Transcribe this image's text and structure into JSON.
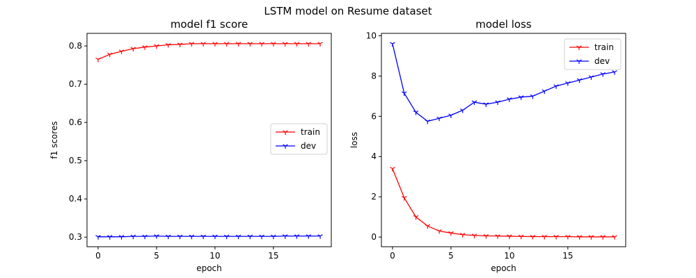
{
  "figure_title": "LSTM model on Resume dataset",
  "chart_data": [
    {
      "type": "line",
      "title": "model f1 score",
      "xlabel": "epoch",
      "ylabel": "f1 scores",
      "xlim": [
        -0.95,
        19.95
      ],
      "ylim": [
        0.275,
        0.833
      ],
      "xticks": [
        0,
        5,
        10,
        15
      ],
      "yticks": [
        0.3,
        0.4,
        0.5,
        0.6,
        0.7,
        0.8
      ],
      "ytick_labels": [
        "0.3",
        "0.4",
        "0.5",
        "0.6",
        "0.7",
        "0.8"
      ],
      "legend_position": "center-right",
      "x": [
        0,
        1,
        2,
        3,
        4,
        5,
        6,
        7,
        8,
        9,
        10,
        11,
        12,
        13,
        14,
        15,
        16,
        17,
        18,
        19
      ],
      "series": [
        {
          "name": "train",
          "color": "#ff0000",
          "values": [
            0.765,
            0.778,
            0.786,
            0.793,
            0.797,
            0.8,
            0.803,
            0.804,
            0.806,
            0.806,
            0.806,
            0.806,
            0.806,
            0.806,
            0.806,
            0.806,
            0.806,
            0.806,
            0.806,
            0.806
          ]
        },
        {
          "name": "dev",
          "color": "#0000ff",
          "values": [
            0.301,
            0.301,
            0.301,
            0.302,
            0.302,
            0.303,
            0.302,
            0.302,
            0.302,
            0.302,
            0.302,
            0.302,
            0.302,
            0.302,
            0.302,
            0.302,
            0.303,
            0.303,
            0.303,
            0.303
          ]
        }
      ]
    },
    {
      "type": "line",
      "title": "model loss",
      "xlabel": "epoch",
      "ylabel": "loss",
      "xlim": [
        -0.95,
        19.95
      ],
      "ylim": [
        -0.48,
        10.12
      ],
      "xticks": [
        0,
        5,
        10,
        15
      ],
      "yticks": [
        0,
        2,
        4,
        6,
        8,
        10
      ],
      "ytick_labels": [
        "0",
        "2",
        "4",
        "6",
        "8",
        "10"
      ],
      "legend_position": "top-right",
      "x": [
        0,
        1,
        2,
        3,
        4,
        5,
        6,
        7,
        8,
        9,
        10,
        11,
        12,
        13,
        14,
        15,
        16,
        17,
        18,
        19
      ],
      "series": [
        {
          "name": "train",
          "color": "#ff0000",
          "values": [
            3.4,
            1.95,
            1.0,
            0.55,
            0.3,
            0.2,
            0.12,
            0.08,
            0.06,
            0.05,
            0.04,
            0.03,
            0.02,
            0.02,
            0.02,
            0.02,
            0.01,
            0.01,
            0.01,
            0.01
          ]
        },
        {
          "name": "dev",
          "color": "#0000ff",
          "values": [
            9.6,
            7.15,
            6.2,
            5.75,
            5.9,
            6.05,
            6.3,
            6.7,
            6.6,
            6.7,
            6.85,
            6.95,
            7.0,
            7.25,
            7.5,
            7.65,
            7.8,
            7.95,
            8.1,
            8.2
          ]
        }
      ]
    }
  ]
}
